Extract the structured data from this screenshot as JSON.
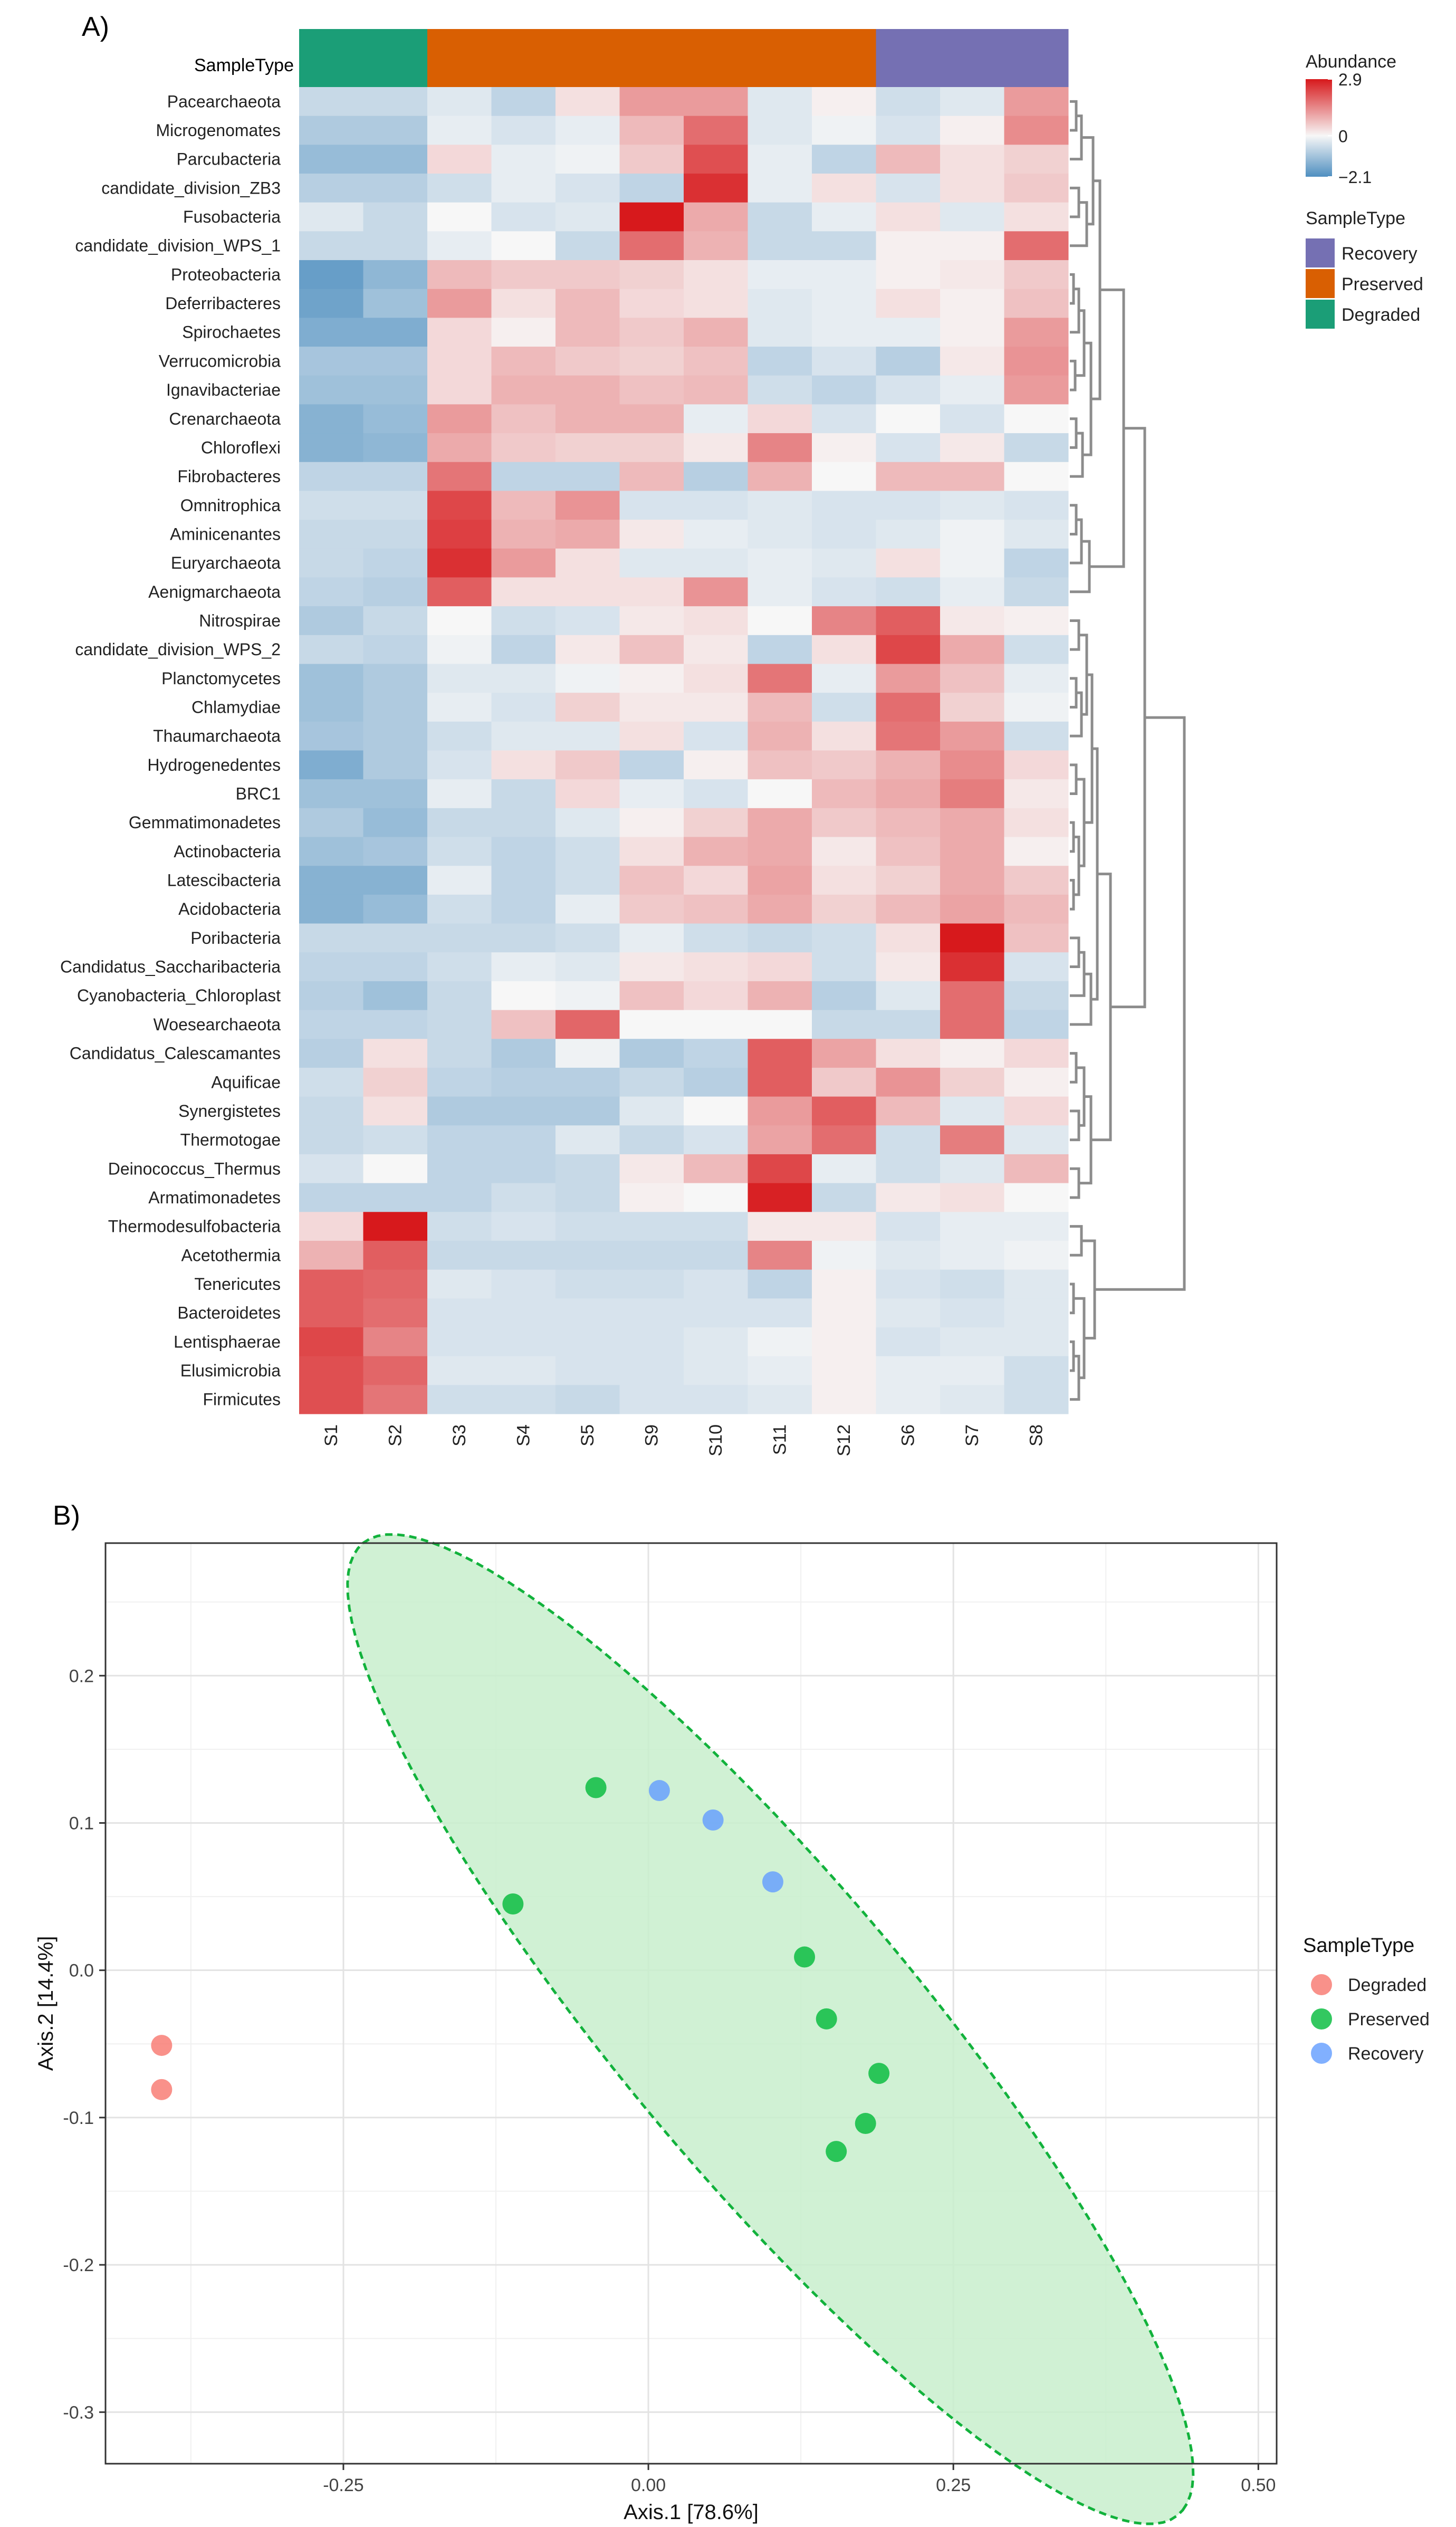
{
  "panel_a_label": "A)",
  "panel_b_label": "B)",
  "colors": {
    "degraded_bar": "#1b9e77",
    "preserved_bar": "#d95f02",
    "recovery_bar": "#7570b3",
    "heat_low": "#4f8fc0",
    "heat_mid": "#f7f7f7",
    "heat_high": "#d7191c",
    "point_degraded": "#f8766d",
    "point_preserved": "#00ba38",
    "point_recovery": "#619cff",
    "ellipse_fill": "#c8efcc",
    "ellipse_stroke": "#12b23c",
    "dendro": "#8c8c8c"
  },
  "chart_data": [
    {
      "type": "heatmap",
      "title": "",
      "annotation_row_label": "SampleType",
      "columns": [
        "S1",
        "S2",
        "S3",
        "S4",
        "S5",
        "S9",
        "S10",
        "S11",
        "S12",
        "S6",
        "S7",
        "S8"
      ],
      "column_groups": [
        "Degraded",
        "Degraded",
        "Preserved",
        "Preserved",
        "Preserved",
        "Preserved",
        "Preserved",
        "Preserved",
        "Preserved",
        "Recovery",
        "Recovery",
        "Recovery"
      ],
      "rows": [
        "Pacearchaeota",
        "Microgenomates",
        "Parcubacteria",
        "candidate_division_ZB3",
        "Fusobacteria",
        "candidate_division_WPS_1",
        "Proteobacteria",
        "Deferribacteres",
        "Spirochaetes",
        "Verrucomicrobia",
        "Ignavibacteriae",
        "Crenarchaeota",
        "Chloroflexi",
        "Fibrobacteres",
        "Omnitrophica",
        "Aminicenantes",
        "Euryarchaeota",
        "Aenigmarchaeota",
        "Nitrospirae",
        "candidate_division_WPS_2",
        "Planctomycetes",
        "Chlamydiae",
        "Thaumarchaeota",
        "Hydrogenedentes",
        "BRC1",
        "Gemmatimonadetes",
        "Actinobacteria",
        "Latescibacteria",
        "Acidobacteria",
        "Poribacteria",
        "Candidatus_Saccharibacteria",
        "Cyanobacteria_Chloroplast",
        "Woesearchaeota",
        "Candidatus_Calescamantes",
        "Aquificae",
        "Synergistetes",
        "Thermotogae",
        "Deinococcus_Thermus",
        "Armatimonadetes",
        "Thermodesulfobacteria",
        "Acetothermia",
        "Tenericutes",
        "Bacteroidetes",
        "Lentisphaerae",
        "Elusimicrobia",
        "Firmicutes"
      ],
      "values": [
        [
          -0.6,
          -0.6,
          -0.3,
          -0.7,
          0.3,
          1.2,
          1.2,
          -0.3,
          0.1,
          -0.5,
          -0.3,
          1.2
        ],
        [
          -0.9,
          -0.9,
          -0.2,
          -0.4,
          -0.2,
          0.8,
          1.8,
          -0.3,
          -0.1,
          -0.4,
          0.1,
          1.4
        ],
        [
          -1.2,
          -1.2,
          0.4,
          -0.2,
          -0.1,
          0.6,
          2.2,
          -0.2,
          -0.7,
          0.8,
          0.3,
          0.5
        ],
        [
          -0.8,
          -0.8,
          -0.5,
          -0.2,
          -0.4,
          -0.7,
          2.6,
          -0.2,
          0.3,
          -0.4,
          0.3,
          0.6
        ],
        [
          -0.3,
          -0.6,
          0.0,
          -0.4,
          -0.3,
          2.9,
          1.0,
          -0.6,
          -0.2,
          0.3,
          -0.3,
          0.3
        ],
        [
          -0.6,
          -0.6,
          -0.2,
          0.0,
          -0.6,
          1.8,
          0.9,
          -0.6,
          -0.6,
          0.1,
          0.1,
          1.8
        ],
        [
          -1.8,
          -1.3,
          0.8,
          0.6,
          0.6,
          0.5,
          0.3,
          -0.2,
          -0.2,
          0.1,
          0.2,
          0.6
        ],
        [
          -1.7,
          -1.1,
          1.2,
          0.3,
          0.8,
          0.4,
          0.3,
          -0.3,
          -0.2,
          0.3,
          0.1,
          0.7
        ],
        [
          -1.5,
          -1.5,
          0.4,
          0.1,
          0.8,
          0.6,
          0.9,
          -0.3,
          -0.2,
          -0.2,
          0.1,
          1.2
        ],
        [
          -1.0,
          -1.0,
          0.4,
          0.8,
          0.6,
          0.5,
          0.7,
          -0.7,
          -0.4,
          -0.8,
          0.2,
          1.3
        ],
        [
          -1.1,
          -1.1,
          0.4,
          0.9,
          0.9,
          0.7,
          0.8,
          -0.5,
          -0.7,
          -0.4,
          -0.2,
          1.2
        ],
        [
          -1.4,
          -1.2,
          1.2,
          0.7,
          0.9,
          0.9,
          -0.2,
          0.4,
          -0.4,
          0.0,
          -0.4,
          0.0
        ],
        [
          -1.4,
          -1.3,
          1.0,
          0.6,
          0.5,
          0.5,
          0.2,
          1.5,
          0.1,
          -0.4,
          0.2,
          -0.6
        ],
        [
          -0.7,
          -0.7,
          1.7,
          -0.7,
          -0.7,
          0.8,
          -0.8,
          0.9,
          0.0,
          0.8,
          0.8,
          0.0
        ],
        [
          -0.5,
          -0.5,
          2.3,
          0.8,
          1.3,
          -0.4,
          -0.4,
          -0.3,
          -0.4,
          -0.4,
          -0.3,
          -0.4
        ],
        [
          -0.6,
          -0.6,
          2.4,
          0.9,
          1.0,
          0.2,
          -0.2,
          -0.3,
          -0.4,
          -0.3,
          -0.1,
          -0.3
        ],
        [
          -0.6,
          -0.7,
          2.6,
          1.2,
          0.3,
          -0.3,
          -0.3,
          -0.2,
          -0.3,
          0.3,
          -0.1,
          -0.7
        ],
        [
          -0.7,
          -0.8,
          2.0,
          0.3,
          0.3,
          0.3,
          1.3,
          -0.2,
          -0.4,
          -0.5,
          -0.2,
          -0.6
        ],
        [
          -0.9,
          -0.6,
          0.0,
          -0.5,
          -0.4,
          0.2,
          0.3,
          0.0,
          1.5,
          2.0,
          0.2,
          0.1
        ],
        [
          -0.6,
          -0.7,
          -0.1,
          -0.7,
          0.2,
          0.7,
          0.2,
          -0.7,
          0.3,
          2.3,
          1.0,
          -0.5
        ],
        [
          -1.1,
          -0.9,
          -0.3,
          -0.3,
          -0.1,
          0.1,
          0.3,
          1.7,
          -0.2,
          1.2,
          0.7,
          -0.2
        ],
        [
          -1.1,
          -0.9,
          -0.2,
          -0.4,
          0.5,
          0.2,
          0.2,
          0.8,
          -0.5,
          1.8,
          0.5,
          -0.1
        ],
        [
          -1.0,
          -0.9,
          -0.5,
          -0.3,
          -0.3,
          0.3,
          -0.4,
          0.9,
          0.3,
          1.7,
          1.2,
          -0.5
        ],
        [
          -1.5,
          -0.9,
          -0.4,
          0.3,
          0.6,
          -0.7,
          0.1,
          0.7,
          0.6,
          0.9,
          1.4,
          0.4
        ],
        [
          -1.1,
          -1.1,
          -0.2,
          -0.6,
          0.4,
          -0.2,
          -0.4,
          0.0,
          0.8,
          1.0,
          1.6,
          0.2
        ],
        [
          -0.9,
          -1.2,
          -0.6,
          -0.6,
          -0.3,
          0.1,
          0.5,
          1.0,
          0.6,
          0.8,
          1.0,
          0.3
        ],
        [
          -1.1,
          -1.0,
          -0.5,
          -0.7,
          -0.5,
          0.3,
          0.9,
          1.0,
          0.2,
          0.7,
          1.0,
          0.1
        ],
        [
          -1.4,
          -1.4,
          -0.2,
          -0.7,
          -0.5,
          0.7,
          0.4,
          1.1,
          0.3,
          0.5,
          1.0,
          0.6
        ],
        [
          -1.4,
          -1.2,
          -0.5,
          -0.7,
          -0.2,
          0.6,
          0.7,
          1.0,
          0.5,
          0.8,
          1.1,
          0.8
        ],
        [
          -0.6,
          -0.6,
          -0.6,
          -0.6,
          -0.5,
          -0.2,
          -0.5,
          -0.6,
          -0.5,
          0.3,
          2.9,
          0.7
        ],
        [
          -0.7,
          -0.7,
          -0.5,
          -0.2,
          -0.3,
          0.2,
          0.3,
          0.4,
          -0.5,
          0.2,
          2.6,
          -0.4
        ],
        [
          -0.8,
          -1.1,
          -0.6,
          0.0,
          -0.1,
          0.7,
          0.4,
          0.9,
          -0.8,
          -0.3,
          1.8,
          -0.6
        ],
        [
          -0.7,
          -0.7,
          -0.6,
          0.7,
          1.9,
          0.0,
          0.0,
          0.0,
          -0.6,
          -0.6,
          1.8,
          -0.7
        ],
        [
          -0.8,
          0.3,
          -0.6,
          -0.9,
          -0.1,
          -0.9,
          -0.7,
          2.0,
          1.1,
          0.3,
          0.1,
          0.4
        ],
        [
          -0.5,
          0.5,
          -0.7,
          -0.8,
          -0.8,
          -0.6,
          -0.8,
          2.0,
          0.6,
          1.3,
          0.5,
          0.1
        ],
        [
          -0.6,
          0.3,
          -0.9,
          -0.9,
          -0.9,
          -0.3,
          0.0,
          1.2,
          2.0,
          0.8,
          -0.3,
          0.4
        ],
        [
          -0.6,
          -0.5,
          -0.7,
          -0.7,
          -0.3,
          -0.6,
          -0.4,
          1.1,
          1.8,
          -0.5,
          1.6,
          -0.3
        ],
        [
          -0.4,
          0.0,
          -0.7,
          -0.7,
          -0.6,
          0.2,
          0.8,
          2.3,
          -0.2,
          -0.5,
          -0.3,
          0.8
        ],
        [
          -0.7,
          -0.7,
          -0.7,
          -0.5,
          -0.6,
          0.1,
          0.0,
          2.8,
          -0.6,
          0.2,
          0.3,
          0.0
        ],
        [
          0.4,
          2.9,
          -0.5,
          -0.4,
          -0.5,
          -0.5,
          -0.5,
          0.2,
          0.2,
          -0.4,
          -0.2,
          -0.2
        ],
        [
          0.9,
          2.0,
          -0.6,
          -0.6,
          -0.6,
          -0.6,
          -0.6,
          1.5,
          -0.1,
          -0.3,
          -0.2,
          -0.1
        ],
        [
          2.0,
          1.9,
          -0.3,
          -0.4,
          -0.5,
          -0.5,
          -0.4,
          -0.7,
          0.1,
          -0.4,
          -0.5,
          -0.3
        ],
        [
          2.0,
          1.8,
          -0.4,
          -0.4,
          -0.4,
          -0.4,
          -0.4,
          -0.4,
          0.1,
          -0.3,
          -0.4,
          -0.3
        ],
        [
          2.3,
          1.5,
          -0.4,
          -0.4,
          -0.4,
          -0.4,
          -0.3,
          -0.1,
          0.1,
          -0.4,
          -0.3,
          -0.3
        ],
        [
          2.2,
          1.9,
          -0.3,
          -0.3,
          -0.4,
          -0.4,
          -0.3,
          -0.2,
          0.1,
          -0.2,
          -0.2,
          -0.5
        ],
        [
          2.2,
          1.7,
          -0.5,
          -0.5,
          -0.6,
          -0.4,
          -0.4,
          -0.3,
          0.1,
          -0.2,
          -0.3,
          -0.5
        ]
      ],
      "color_scale": {
        "title": "Abundance",
        "min": -2.1,
        "max": 2.9,
        "ticks": [
          "2.9",
          "0",
          "−2.1"
        ]
      },
      "sample_type_legend": {
        "title": "SampleType",
        "entries": [
          "Recovery",
          "Preserved",
          "Degraded"
        ]
      }
    },
    {
      "type": "scatter",
      "title": "",
      "xlabel": "Axis.1   [78.6%]",
      "ylabel": "Axis.2   [14.4%]",
      "xlim": [
        -0.445,
        0.515
      ],
      "ylim": [
        -0.335,
        0.29
      ],
      "x_ticks": [
        -0.25,
        0.0,
        0.25,
        0.5
      ],
      "x_tick_labels": [
        "-0.25",
        "0.00",
        "0.25",
        "0.50"
      ],
      "y_ticks": [
        -0.3,
        -0.2,
        -0.1,
        0.0,
        0.1,
        0.2
      ],
      "y_tick_labels": [
        "-0.3",
        "-0.2",
        "-0.1",
        "0.0",
        "0.1",
        "0.2"
      ],
      "grid": true,
      "legend": {
        "title": "SampleType",
        "position": "right",
        "entries": [
          "Degraded",
          "Preserved",
          "Recovery"
        ]
      },
      "series": [
        {
          "name": "Degraded",
          "points": [
            [
              -0.399,
              -0.051
            ],
            [
              -0.399,
              -0.081
            ]
          ]
        },
        {
          "name": "Preserved",
          "points": [
            [
              -0.043,
              0.124
            ],
            [
              -0.111,
              0.045
            ],
            [
              0.128,
              0.009
            ],
            [
              0.146,
              -0.033
            ],
            [
              0.189,
              -0.07
            ],
            [
              0.178,
              -0.104
            ],
            [
              0.154,
              -0.123
            ]
          ]
        },
        {
          "name": "Recovery",
          "points": [
            [
              0.009,
              0.122
            ],
            [
              0.053,
              0.102
            ],
            [
              0.102,
              0.06
            ]
          ]
        }
      ],
      "ellipse": {
        "group": "Preserved",
        "center": [
          0.1,
          -0.04
        ],
        "semi_major": 0.47,
        "semi_minor": 0.11,
        "angle_deg": -44
      }
    }
  ]
}
